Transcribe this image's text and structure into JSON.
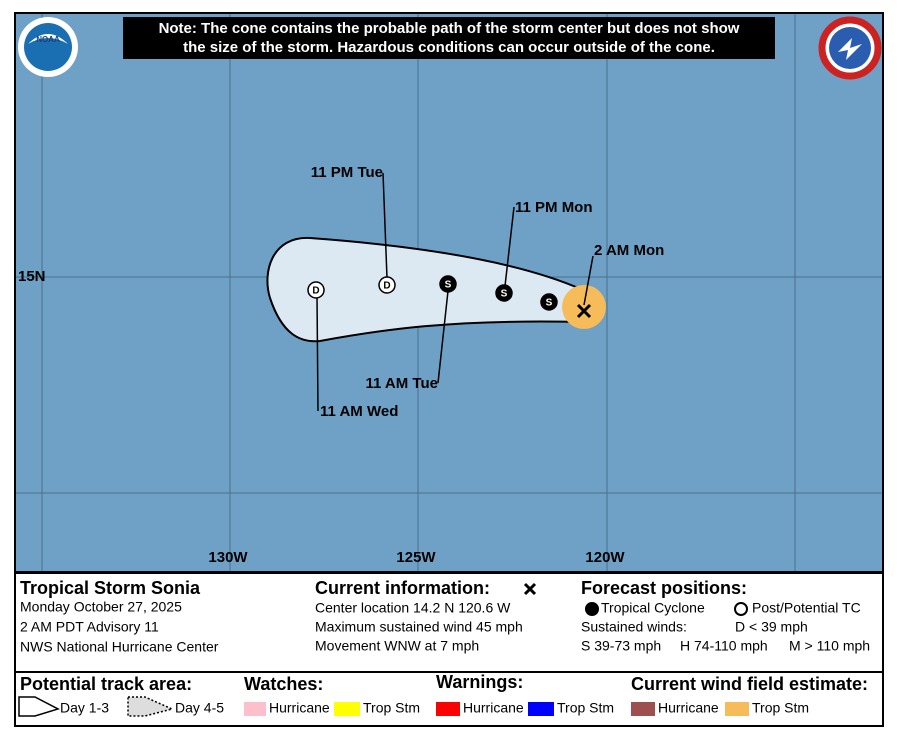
{
  "logos": {
    "noaa": "NOAA"
  },
  "note": [
    "Note: The cone contains the probable path of the storm center but does not show",
    "the size of the storm. Hazardous conditions can occur outside of the cone."
  ],
  "map": {
    "lat_labels": [
      "15N"
    ],
    "lon_labels": [
      "130W",
      "125W",
      "120W"
    ],
    "points": [
      {
        "label": "2 AM Mon",
        "marker": null
      },
      {
        "label": null,
        "marker": "S"
      },
      {
        "label": "11 PM Mon",
        "marker": "S"
      },
      {
        "label": "11 AM Tue",
        "marker": "S"
      },
      {
        "label": "11 PM Tue",
        "marker": "D"
      },
      {
        "label": "11 AM Wed",
        "marker": "D"
      }
    ]
  },
  "info": {
    "storm": "Tropical Storm Sonia",
    "date": "Monday October 27, 2025",
    "advisory": "2 AM PDT Advisory 11",
    "center": "NWS National Hurricane Center"
  },
  "current": {
    "title": "Current information:",
    "lines": [
      "Center location 14.2 N 120.6 W",
      "Maximum sustained wind 45 mph",
      "Movement WNW at 7 mph"
    ]
  },
  "forecast": {
    "title": "Forecast positions:",
    "tropical": "Tropical Cyclone",
    "post": "Post/Potential TC",
    "winds": "Sustained winds:",
    "d": "D < 39 mph",
    "s": "S 39-73 mph",
    "h": "H 74-110 mph",
    "m": "M > 110 mph"
  },
  "legend": {
    "track": "Potential track area:",
    "day13": "Day 1-3",
    "day45": "Day 4-5",
    "watches": "Watches:",
    "watch_hurricane": "Hurricane",
    "watch_ts": "Trop Stm",
    "warnings": "Warnings:",
    "warn_hurricane": "Hurricane",
    "warn_ts": "Trop Stm",
    "wind": "Current wind field estimate:",
    "wind_hurricane": "Hurricane",
    "wind_ts": "Trop Stm"
  }
}
